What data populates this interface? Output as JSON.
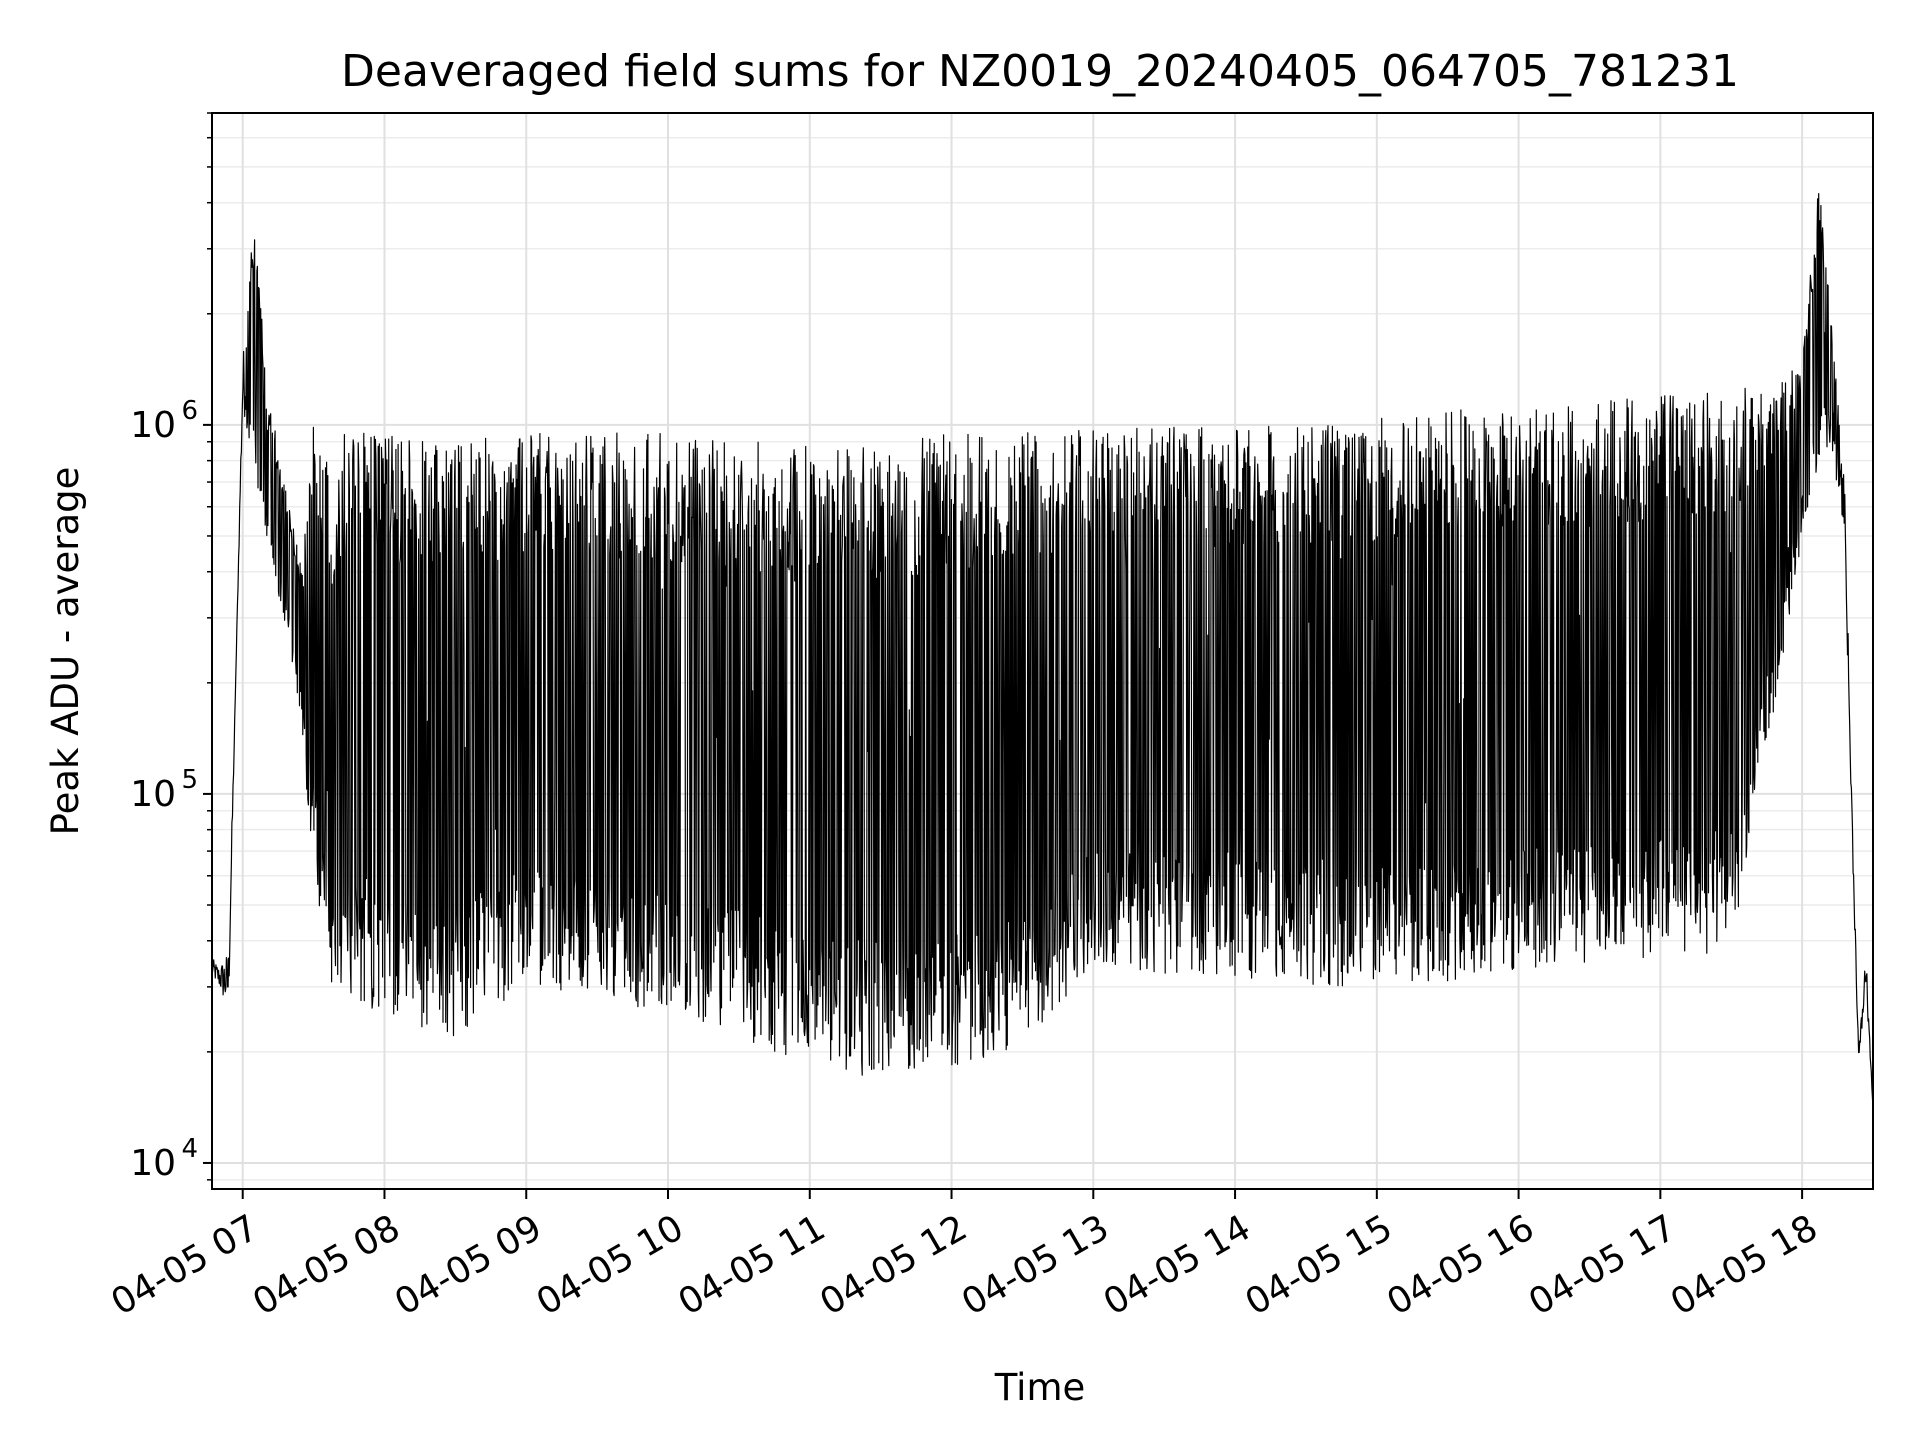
{
  "chart_data": {
    "type": "line",
    "title": "Deaveraged field sums for NZ0019_20240405_064705_781231",
    "xlabel": "Time",
    "ylabel": "Peak ADU - average",
    "y_scale": "log",
    "ylim": [
      8500,
      7000000
    ],
    "xlim": [
      "2024-04-05 06:47",
      "2024-04-05 18:30"
    ],
    "x_ticks": [
      "04-05 07",
      "04-05 08",
      "04-05 09",
      "04-05 10",
      "04-05 11",
      "04-05 12",
      "04-05 13",
      "04-05 14",
      "04-05 15",
      "04-05 16",
      "04-05 17",
      "04-05 18"
    ],
    "y_ticks": [
      {
        "base": "10",
        "exp": "4",
        "value": 10000
      },
      {
        "base": "10",
        "exp": "5",
        "value": 100000
      },
      {
        "base": "10",
        "exp": "6",
        "value": 1000000
      }
    ],
    "grid": true,
    "line_color": "#000000",
    "series": [
      {
        "x": [
          "2024-04-05 06:47",
          "2024-04-05 06:50",
          "2024-04-05 06:54",
          "2024-04-05 06:57",
          "2024-04-05 07:00",
          "2024-04-05 07:03",
          "2024-04-05 07:06",
          "2024-04-05 07:10",
          "2024-04-05 07:15",
          "2024-04-05 07:20",
          "2024-04-05 07:25",
          "2024-04-05 07:30",
          "2024-04-05 07:34",
          "2024-04-05 07:38",
          "2024-04-05 07:42",
          "2024-04-05 07:50",
          "2024-04-05 08:00",
          "2024-04-05 08:30",
          "2024-04-05 09:00",
          "2024-04-05 09:30",
          "2024-04-05 10:00",
          "2024-04-05 10:30",
          "2024-04-05 11:00",
          "2024-04-05 11:30",
          "2024-04-05 12:00",
          "2024-04-05 12:30",
          "2024-04-05 13:00",
          "2024-04-05 13:30",
          "2024-04-05 14:00",
          "2024-04-05 14:30",
          "2024-04-05 15:00",
          "2024-04-05 15:30",
          "2024-04-05 16:00",
          "2024-04-05 16:30",
          "2024-04-05 17:00",
          "2024-04-05 17:30",
          "2024-04-05 17:50",
          "2024-04-05 18:00",
          "2024-04-05 18:07",
          "2024-04-05 18:12",
          "2024-04-05 18:18",
          "2024-04-05 18:21",
          "2024-04-05 18:24",
          "2024-04-05 18:27",
          "2024-04-05 18:30"
        ],
        "upper": [
          36000,
          34000,
          38000,
          200000,
          1500000,
          2800000,
          3500000,
          1200000,
          900000,
          600000,
          400000,
          1100000,
          900000,
          650000,
          950000,
          950000,
          950000,
          900000,
          950000,
          950000,
          950000,
          900000,
          900000,
          880000,
          950000,
          950000,
          1000000,
          1000000,
          1000000,
          1000000,
          1050000,
          1100000,
          1100000,
          1150000,
          1200000,
          1250000,
          1300000,
          1500000,
          5000000,
          2000000,
          700000,
          100000,
          20000,
          38000,
          14000
        ],
        "lower": [
          32000,
          30000,
          25000,
          200000,
          1100000,
          900000,
          700000,
          500000,
          350000,
          250000,
          150000,
          60000,
          35000,
          30000,
          28000,
          27000,
          25000,
          22000,
          30000,
          28000,
          25000,
          22000,
          18000,
          17000,
          18000,
          20000,
          35000,
          32000,
          31000,
          30000,
          30000,
          31000,
          33000,
          34000,
          35000,
          38000,
          200000,
          500000,
          800000,
          900000,
          500000,
          80000,
          18000,
          30000,
          14000
        ]
      }
    ]
  }
}
